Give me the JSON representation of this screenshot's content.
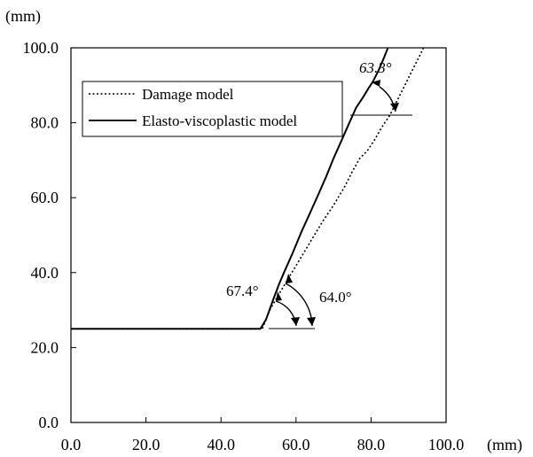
{
  "chart_data": {
    "type": "line",
    "title": "",
    "xlabel": "(mm)",
    "ylabel": "(mm)",
    "xlim": [
      0,
      100
    ],
    "ylim": [
      0,
      100
    ],
    "x_ticks": [
      "0.0",
      "20.0",
      "40.0",
      "60.0",
      "80.0",
      "100.0"
    ],
    "y_ticks": [
      "0.0",
      "20.0",
      "40.0",
      "60.0",
      "80.0",
      "100.0"
    ],
    "grid": false,
    "legend_position": "top-left",
    "series": [
      {
        "name": "Damage model",
        "style": "dotted",
        "color": "#000000",
        "points": [
          [
            0,
            25
          ],
          [
            51,
            25
          ],
          [
            52,
            27.5
          ],
          [
            53,
            30
          ],
          [
            55,
            33.5
          ],
          [
            58,
            38.5
          ],
          [
            61,
            43.5
          ],
          [
            64,
            48.5
          ],
          [
            67,
            53.5
          ],
          [
            70,
            58
          ],
          [
            73,
            63
          ],
          [
            75,
            67
          ],
          [
            77,
            70.5
          ],
          [
            79,
            72.5
          ],
          [
            81,
            75.5
          ],
          [
            83,
            79
          ],
          [
            85,
            82
          ],
          [
            87,
            86
          ],
          [
            89,
            90
          ],
          [
            91,
            94
          ],
          [
            93,
            98
          ],
          [
            94,
            100
          ]
        ]
      },
      {
        "name": "Elasto-viscoplastic model",
        "style": "solid",
        "color": "#000000",
        "points": [
          [
            0,
            25
          ],
          [
            50.5,
            25
          ],
          [
            52,
            27.5
          ],
          [
            54,
            33
          ],
          [
            55.5,
            37
          ],
          [
            57,
            40.5
          ],
          [
            59,
            45
          ],
          [
            61.5,
            51
          ],
          [
            64,
            56.5
          ],
          [
            66,
            61
          ],
          [
            68,
            65.5
          ],
          [
            70,
            70.5
          ],
          [
            72,
            75
          ],
          [
            74,
            79.5
          ],
          [
            76,
            84
          ],
          [
            78,
            87
          ],
          [
            79.5,
            89.5
          ],
          [
            80.5,
            91
          ],
          [
            82,
            94
          ],
          [
            83.5,
            97.5
          ],
          [
            84.5,
            100
          ]
        ]
      }
    ],
    "annotations": [
      "67.4°",
      "64.0°",
      "63.3°"
    ]
  }
}
